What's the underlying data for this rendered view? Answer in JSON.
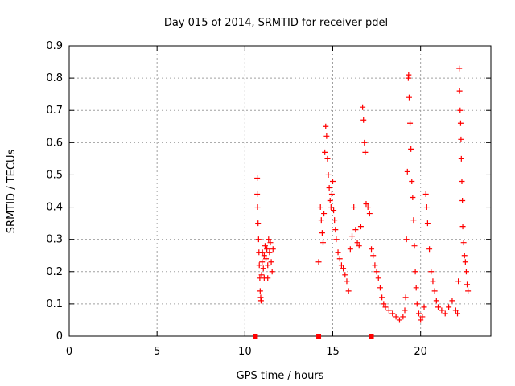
{
  "chart_data": {
    "type": "scatter",
    "title": "Day 015 of 2014, SRMTID for receiver pdel",
    "xlabel": "GPS time / hours",
    "ylabel": "SRMTID / TECUs",
    "xlim": [
      0,
      24.0
    ],
    "ylim": [
      0,
      0.9
    ],
    "xticks": [
      0,
      5,
      10,
      15,
      20
    ],
    "xtick_labels": [
      "0",
      "5",
      "10",
      "15",
      "20"
    ],
    "yticks": [
      0,
      0.1,
      0.2,
      0.3,
      0.4,
      0.5,
      0.6,
      0.7,
      0.8,
      0.9
    ],
    "ytick_labels": [
      "0",
      "0.1",
      "0.2",
      "0.3",
      "0.4",
      "0.5",
      "0.6",
      "0.7",
      "0.8",
      "0.9"
    ],
    "grid": true,
    "marker": "+",
    "color": "#ff0000",
    "series": [
      {
        "name": "SRMTID",
        "points": [
          [
            10.7,
            0.49
          ],
          [
            10.7,
            0.44
          ],
          [
            10.72,
            0.4
          ],
          [
            10.75,
            0.35
          ],
          [
            10.78,
            0.3
          ],
          [
            10.8,
            0.26
          ],
          [
            10.82,
            0.22
          ],
          [
            10.85,
            0.18
          ],
          [
            10.87,
            0.14
          ],
          [
            10.9,
            0.12
          ],
          [
            10.92,
            0.11
          ],
          [
            10.95,
            0.19
          ],
          [
            10.98,
            0.23
          ],
          [
            11.0,
            0.26
          ],
          [
            11.05,
            0.21
          ],
          [
            11.1,
            0.25
          ],
          [
            11.15,
            0.28
          ],
          [
            11.2,
            0.24
          ],
          [
            11.25,
            0.27
          ],
          [
            11.3,
            0.22
          ],
          [
            11.35,
            0.3
          ],
          [
            11.4,
            0.26
          ],
          [
            11.45,
            0.29
          ],
          [
            11.5,
            0.23
          ],
          [
            11.55,
            0.2
          ],
          [
            11.6,
            0.27
          ],
          [
            11.1,
            0.18
          ],
          [
            11.3,
            0.18
          ],
          [
            14.2,
            0.23
          ],
          [
            14.3,
            0.4
          ],
          [
            14.35,
            0.36
          ],
          [
            14.4,
            0.32
          ],
          [
            14.45,
            0.29
          ],
          [
            14.5,
            0.38
          ],
          [
            14.55,
            0.57
          ],
          [
            14.6,
            0.65
          ],
          [
            14.65,
            0.62
          ],
          [
            14.7,
            0.55
          ],
          [
            14.75,
            0.5
          ],
          [
            14.8,
            0.46
          ],
          [
            14.85,
            0.42
          ],
          [
            14.9,
            0.4
          ],
          [
            14.95,
            0.44
          ],
          [
            15.0,
            0.48
          ],
          [
            15.05,
            0.39
          ],
          [
            15.1,
            0.36
          ],
          [
            15.15,
            0.33
          ],
          [
            15.2,
            0.3
          ],
          [
            15.3,
            0.26
          ],
          [
            15.4,
            0.24
          ],
          [
            15.5,
            0.22
          ],
          [
            15.6,
            0.21
          ],
          [
            15.7,
            0.19
          ],
          [
            15.8,
            0.17
          ],
          [
            15.9,
            0.14
          ],
          [
            16.0,
            0.27
          ],
          [
            16.1,
            0.31
          ],
          [
            16.2,
            0.4
          ],
          [
            16.3,
            0.33
          ],
          [
            16.4,
            0.29
          ],
          [
            16.5,
            0.28
          ],
          [
            16.6,
            0.34
          ],
          [
            16.7,
            0.71
          ],
          [
            16.75,
            0.67
          ],
          [
            16.8,
            0.6
          ],
          [
            16.85,
            0.57
          ],
          [
            16.9,
            0.41
          ],
          [
            17.0,
            0.4
          ],
          [
            17.1,
            0.38
          ],
          [
            17.2,
            0.27
          ],
          [
            17.3,
            0.25
          ],
          [
            17.4,
            0.22
          ],
          [
            17.5,
            0.2
          ],
          [
            17.6,
            0.18
          ],
          [
            17.7,
            0.15
          ],
          [
            17.8,
            0.12
          ],
          [
            17.9,
            0.1
          ],
          [
            18.0,
            0.09
          ],
          [
            18.2,
            0.08
          ],
          [
            18.4,
            0.07
          ],
          [
            18.6,
            0.06
          ],
          [
            18.8,
            0.05
          ],
          [
            19.0,
            0.06
          ],
          [
            19.1,
            0.08
          ],
          [
            19.15,
            0.12
          ],
          [
            19.2,
            0.3
          ],
          [
            19.25,
            0.51
          ],
          [
            19.3,
            0.8
          ],
          [
            19.32,
            0.81
          ],
          [
            19.35,
            0.74
          ],
          [
            19.4,
            0.66
          ],
          [
            19.45,
            0.58
          ],
          [
            19.5,
            0.48
          ],
          [
            19.55,
            0.43
          ],
          [
            19.6,
            0.36
          ],
          [
            19.65,
            0.28
          ],
          [
            19.7,
            0.2
          ],
          [
            19.75,
            0.15
          ],
          [
            19.8,
            0.1
          ],
          [
            19.9,
            0.07
          ],
          [
            20.0,
            0.05
          ],
          [
            20.1,
            0.06
          ],
          [
            20.2,
            0.09
          ],
          [
            20.3,
            0.44
          ],
          [
            20.35,
            0.4
          ],
          [
            20.4,
            0.35
          ],
          [
            20.5,
            0.27
          ],
          [
            20.6,
            0.2
          ],
          [
            20.7,
            0.17
          ],
          [
            20.8,
            0.14
          ],
          [
            20.9,
            0.11
          ],
          [
            21.0,
            0.09
          ],
          [
            21.2,
            0.08
          ],
          [
            21.4,
            0.07
          ],
          [
            21.6,
            0.09
          ],
          [
            21.8,
            0.11
          ],
          [
            22.0,
            0.08
          ],
          [
            22.1,
            0.07
          ],
          [
            22.15,
            0.17
          ],
          [
            22.2,
            0.83
          ],
          [
            22.22,
            0.76
          ],
          [
            22.25,
            0.7
          ],
          [
            22.28,
            0.66
          ],
          [
            22.3,
            0.61
          ],
          [
            22.32,
            0.55
          ],
          [
            22.35,
            0.48
          ],
          [
            22.38,
            0.42
          ],
          [
            22.4,
            0.34
          ],
          [
            22.45,
            0.29
          ],
          [
            22.5,
            0.25
          ],
          [
            22.55,
            0.23
          ],
          [
            22.6,
            0.2
          ],
          [
            22.65,
            0.16
          ],
          [
            22.7,
            0.14
          ]
        ]
      },
      {
        "name": "gaps",
        "marker": "square",
        "points": [
          [
            10.6,
            0
          ],
          [
            14.2,
            0
          ],
          [
            17.2,
            0
          ]
        ]
      }
    ]
  }
}
